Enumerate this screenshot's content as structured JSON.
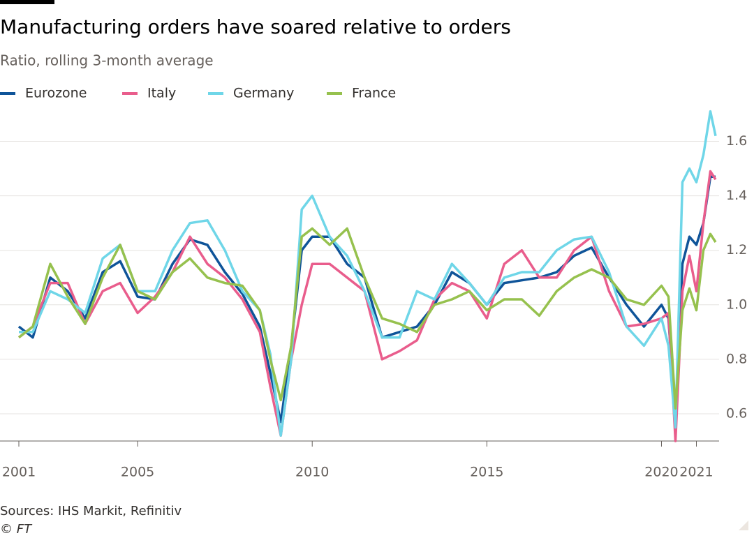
{
  "chart_data": {
    "type": "line",
    "title": "Manufacturing orders have soared relative to orders",
    "subtitle": "Ratio, rolling 3-month average",
    "source": "Sources: IHS Markit, Refinitiv",
    "credit": "© FT",
    "x": [
      2001.6,
      2002.0,
      2002.5,
      2003.0,
      2003.5,
      2004.0,
      2004.5,
      2005.0,
      2005.5,
      2006.0,
      2006.5,
      2007.0,
      2007.5,
      2008.0,
      2008.5,
      2008.8,
      2009.1,
      2009.4,
      2009.7,
      2010.0,
      2010.5,
      2011.0,
      2011.5,
      2012.0,
      2012.5,
      2013.0,
      2013.5,
      2014.0,
      2014.5,
      2015.0,
      2015.5,
      2016.0,
      2016.5,
      2017.0,
      2017.5,
      2018.0,
      2018.5,
      2019.0,
      2019.5,
      2020.0,
      2020.2,
      2020.4,
      2020.6,
      2020.8,
      2021.0,
      2021.2,
      2021.4,
      2021.55
    ],
    "series": [
      {
        "name": "Eurozone",
        "color": "#0f5499",
        "values": [
          0.92,
          0.88,
          1.1,
          1.05,
          0.95,
          1.12,
          1.16,
          1.03,
          1.02,
          1.15,
          1.24,
          1.22,
          1.12,
          1.04,
          0.92,
          0.75,
          0.57,
          0.85,
          1.2,
          1.25,
          1.25,
          1.15,
          1.1,
          0.88,
          0.9,
          0.92,
          1.0,
          1.12,
          1.08,
          1.0,
          1.08,
          1.09,
          1.1,
          1.12,
          1.18,
          1.21,
          1.1,
          1.0,
          0.92,
          1.0,
          0.95,
          0.57,
          1.15,
          1.25,
          1.22,
          1.3,
          1.47,
          1.47
        ]
      },
      {
        "name": "Italy",
        "color": "#e95d8c",
        "values": [
          0.88,
          0.92,
          1.08,
          1.08,
          0.93,
          1.05,
          1.08,
          0.97,
          1.03,
          1.12,
          1.25,
          1.15,
          1.1,
          1.02,
          0.9,
          0.7,
          0.52,
          0.8,
          1.0,
          1.15,
          1.15,
          1.1,
          1.05,
          0.8,
          0.83,
          0.87,
          1.02,
          1.08,
          1.05,
          0.95,
          1.15,
          1.2,
          1.1,
          1.1,
          1.2,
          1.25,
          1.05,
          0.92,
          0.93,
          0.95,
          0.97,
          0.5,
          1.05,
          1.18,
          1.05,
          1.3,
          1.49,
          1.46
        ]
      },
      {
        "name": "Germany",
        "color": "#6fd6e8",
        "values": [
          0.9,
          0.9,
          1.05,
          1.02,
          0.97,
          1.17,
          1.22,
          1.05,
          1.05,
          1.2,
          1.3,
          1.31,
          1.2,
          1.05,
          0.98,
          0.82,
          0.52,
          0.8,
          1.35,
          1.4,
          1.25,
          1.18,
          1.05,
          0.88,
          0.88,
          1.05,
          1.02,
          1.15,
          1.08,
          1.0,
          1.1,
          1.12,
          1.12,
          1.2,
          1.24,
          1.25,
          1.12,
          0.92,
          0.85,
          0.95,
          0.85,
          0.55,
          1.45,
          1.5,
          1.45,
          1.55,
          1.71,
          1.62
        ]
      },
      {
        "name": "France",
        "color": "#96c14e",
        "values": [
          0.88,
          0.92,
          1.15,
          1.03,
          0.93,
          1.1,
          1.22,
          1.05,
          1.02,
          1.12,
          1.17,
          1.1,
          1.08,
          1.07,
          0.98,
          0.8,
          0.65,
          0.85,
          1.25,
          1.28,
          1.22,
          1.28,
          1.1,
          0.95,
          0.93,
          0.9,
          1.0,
          1.02,
          1.05,
          0.98,
          1.02,
          1.02,
          0.96,
          1.05,
          1.1,
          1.13,
          1.1,
          1.02,
          1.0,
          1.07,
          1.03,
          0.62,
          0.98,
          1.06,
          0.98,
          1.2,
          1.26,
          1.23
        ]
      }
    ],
    "xlim": [
      2001.6,
      2021.55
    ],
    "xticks": [
      {
        "value": 2001.6,
        "label": "2001"
      },
      2005,
      2010,
      2015,
      2020,
      2021
    ],
    "ylim": [
      0.5,
      1.75
    ],
    "yticks": [
      0.6,
      0.8,
      {
        "value": 1,
        "label": "1.0"
      },
      1.2,
      1.4,
      1.6
    ],
    "grid": true
  }
}
